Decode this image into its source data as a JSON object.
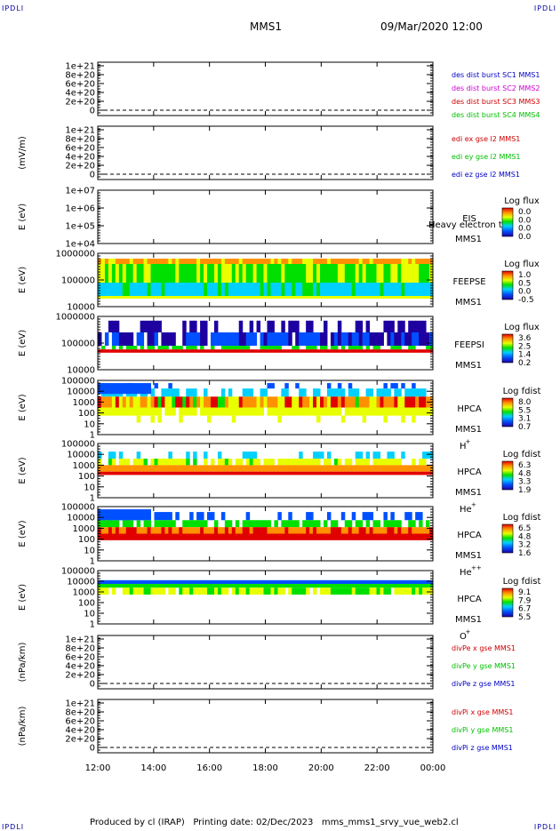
{
  "header": {
    "corner_tl": "IPDLI",
    "corner_tr": "IPDLI",
    "corner_bl": "IPDLI",
    "corner_br": "IPDLI",
    "spacecraft": "MMS1",
    "datetime": "09/Mar/2020 12:00"
  },
  "footer": {
    "text": "Produced by cl (IRAP)   Printing date: 02/Dec/2023   mms_mms1_srvy_vue_web2.cl"
  },
  "colors": {
    "blue": "#0000c8",
    "magenta": "#d000d0",
    "red": "#d00000",
    "green": "#00c000"
  },
  "chart_data": [
    {
      "type": "line",
      "panel": "des-dist",
      "ylabel": "",
      "yticks": [
        "1e+21",
        "8e+20",
        "6e+20",
        "4e+20",
        "2e+20",
        "0"
      ],
      "series": [
        {
          "name": "des dist burst SC1 MMS1",
          "color": "#0000c8"
        },
        {
          "name": "des dist burst SC2 MMS2",
          "color": "#d000d0"
        },
        {
          "name": "des dist burst SC3 MMS3",
          "color": "#d00000"
        },
        {
          "name": "des dist burst SC4 MMS4",
          "color": "#00c000"
        }
      ]
    },
    {
      "type": "line",
      "panel": "edi-e",
      "ylabel": "(mV/m)",
      "yticks": [
        "1e+21",
        "8e+20",
        "6e+20",
        "4e+20",
        "2e+20",
        "0"
      ],
      "series": [
        {
          "name": "edi ex gse l2 MMS1",
          "color": "#d00000"
        },
        {
          "name": "edi ey gse l2 MMS1",
          "color": "#00c000"
        },
        {
          "name": "edi ez gse l2 MMS1",
          "color": "#0000c8"
        }
      ]
    },
    {
      "type": "heatmap",
      "panel": "eis",
      "ylabel": "E (eV)",
      "yticks": [
        "1e+07",
        "1e+06",
        "1e+05",
        "1e+04"
      ],
      "labels": [
        "EIS",
        "MMS1"
      ],
      "overlay_text": "Heavy electron to",
      "colorbar": {
        "title": "Log flux",
        "ticks": [
          "0.0",
          "0.0",
          "0.0",
          "0.0"
        ]
      }
    },
    {
      "type": "heatmap",
      "panel": "feepse",
      "ylabel": "E (eV)",
      "yticks": [
        "1000000",
        "100000",
        "10000"
      ],
      "labels": [
        "FEEPSE",
        "MMS1"
      ],
      "colorbar": {
        "title": "Log flux",
        "ticks": [
          "1.0",
          "0.5",
          "0.0",
          "-0.5"
        ]
      }
    },
    {
      "type": "heatmap",
      "panel": "feepsi",
      "ylabel": "E (eV)",
      "yticks": [
        "1000000",
        "100000",
        "10000"
      ],
      "labels": [
        "FEEPSI",
        "MMS1"
      ],
      "colorbar": {
        "title": "Log flux",
        "ticks": [
          "3.6",
          "2.5",
          "1.4",
          "0.2"
        ]
      }
    },
    {
      "type": "heatmap",
      "panel": "hpca-h",
      "ylabel": "E (eV)",
      "yticks": [
        "100000",
        "10000",
        "1000",
        "100",
        "10",
        "1"
      ],
      "labels": [
        "HPCA",
        "MMS1"
      ],
      "species": "H",
      "charge": "+",
      "colorbar": {
        "title": "Log fdist",
        "ticks": [
          "8.0",
          "5.5",
          "3.1",
          "0.7"
        ]
      }
    },
    {
      "type": "heatmap",
      "panel": "hpca-he",
      "ylabel": "E (eV)",
      "yticks": [
        "100000",
        "10000",
        "1000",
        "100",
        "10",
        "1"
      ],
      "labels": [
        "HPCA",
        "MMS1"
      ],
      "species": "He",
      "charge": "+",
      "colorbar": {
        "title": "Log fdist",
        "ticks": [
          "6.3",
          "4.8",
          "3.3",
          "1.9"
        ]
      }
    },
    {
      "type": "heatmap",
      "panel": "hpca-he2",
      "ylabel": "E (eV)",
      "yticks": [
        "100000",
        "10000",
        "1000",
        "100",
        "10",
        "1"
      ],
      "labels": [
        "HPCA",
        "MMS1"
      ],
      "species": "He",
      "charge": "++",
      "colorbar": {
        "title": "Log fdist",
        "ticks": [
          "6.5",
          "4.8",
          "3.2",
          "1.6"
        ]
      }
    },
    {
      "type": "heatmap",
      "panel": "hpca-o",
      "ylabel": "E (eV)",
      "yticks": [
        "100000",
        "10000",
        "1000",
        "100",
        "10",
        "1"
      ],
      "labels": [
        "HPCA",
        "MMS1"
      ],
      "species": "O",
      "charge": "+",
      "colorbar": {
        "title": "Log fdist",
        "ticks": [
          "9.1",
          "7.9",
          "6.7",
          "5.5"
        ]
      }
    },
    {
      "type": "line",
      "panel": "divpe",
      "ylabel": "(nPa/km)",
      "yticks": [
        "1e+21",
        "8e+20",
        "6e+20",
        "4e+20",
        "2e+20",
        "0"
      ],
      "series": [
        {
          "name": "divPe x gse MMS1",
          "color": "#d00000"
        },
        {
          "name": "divPe y gse MMS1",
          "color": "#00c000"
        },
        {
          "name": "divPe z gse MMS1",
          "color": "#0000c8"
        }
      ]
    },
    {
      "type": "line",
      "panel": "divpi",
      "ylabel": "(nPa/km)",
      "yticks": [
        "1e+21",
        "8e+20",
        "6e+20",
        "4e+20",
        "2e+20",
        "0"
      ],
      "series": [
        {
          "name": "divPi x gse MMS1",
          "color": "#d00000"
        },
        {
          "name": "divPi y gse MMS1",
          "color": "#00c000"
        },
        {
          "name": "divPi z gse MMS1",
          "color": "#0000c8"
        }
      ]
    }
  ],
  "xaxis": {
    "ticks": [
      "12:00",
      "14:00",
      "16:00",
      "18:00",
      "20:00",
      "22:00",
      "00:00"
    ]
  }
}
